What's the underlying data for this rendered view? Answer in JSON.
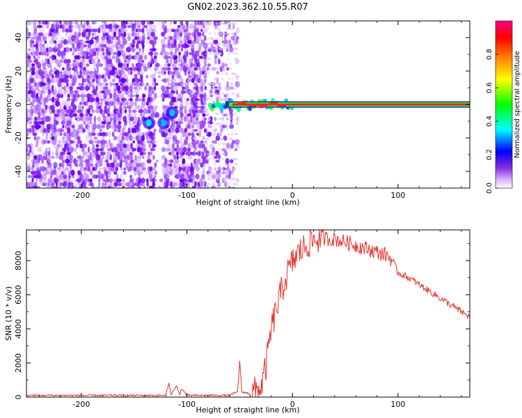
{
  "title": "GN02.2023.362.10.55.R07",
  "chart_data": [
    {
      "type": "heatmap",
      "xlabel": "Height of straight line (km)",
      "ylabel": "Frequency (Hz)",
      "xlim": [
        -252,
        168
      ],
      "ylim": [
        -50,
        50
      ],
      "x_ticks": [
        -200,
        -100,
        0,
        100
      ],
      "y_ticks": [
        -40,
        -20,
        0,
        20,
        40
      ],
      "colorbar": {
        "label": "Normalized spectral amplitude",
        "range": [
          0,
          1
        ],
        "ticks": [
          "0.0",
          "0.2",
          "0.4",
          "0.6",
          "0.8"
        ],
        "colormap": "rainbow-white-to-magenta"
      },
      "features": {
        "noise_region_x": [
          -252,
          -62
        ],
        "carrier_start_x": -80,
        "carrier_frequency_hz": 0,
        "carrier_peak_color": "#ff1a1a"
      }
    },
    {
      "type": "line",
      "xlabel": "Height of straight line (km)",
      "ylabel": "SNR (10 * v/v)",
      "xlim": [
        -252,
        168
      ],
      "ylim": [
        0,
        9800
      ],
      "x_ticks": [
        -200,
        -100,
        0,
        100
      ],
      "y_ticks": [
        0,
        2000,
        4000,
        6000,
        8000
      ],
      "color": "#e8312c",
      "series": [
        {
          "x": [
            -252,
            -200,
            -150,
            -120,
            -117,
            -115,
            -110,
            -107,
            -105,
            -100,
            -60,
            -52,
            -50,
            -48,
            -40,
            -30,
            -25,
            -22,
            -20,
            -15,
            -10,
            -5,
            0,
            5,
            10,
            15,
            20,
            25,
            30,
            40,
            50,
            60,
            70,
            80,
            90,
            95,
            100,
            110,
            120,
            130,
            140,
            150,
            160,
            168
          ],
          "y": [
            100,
            100,
            100,
            100,
            800,
            150,
            650,
            150,
            500,
            100,
            100,
            300,
            2100,
            300,
            200,
            500,
            1800,
            3200,
            4000,
            5200,
            6300,
            7200,
            7900,
            8400,
            8700,
            9000,
            9200,
            9300,
            9300,
            9250,
            9100,
            8900,
            8700,
            8500,
            8300,
            8000,
            7300,
            7000,
            6600,
            6200,
            5800,
            5400,
            5000,
            4700
          ]
        }
      ]
    }
  ]
}
